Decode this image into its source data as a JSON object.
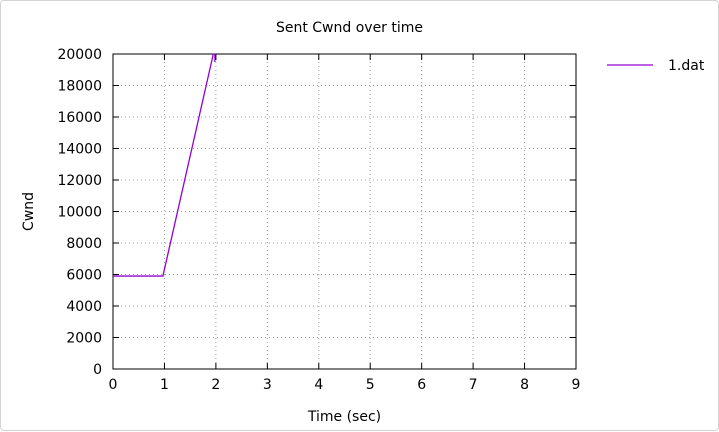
{
  "chart_data": {
    "type": "line",
    "title": "Sent Cwnd over time",
    "xlabel": "Time (sec)",
    "ylabel": "Cwnd",
    "xlim": [
      0,
      9
    ],
    "ylim": [
      0,
      20000
    ],
    "x_ticks": [
      0,
      1,
      2,
      3,
      4,
      5,
      6,
      7,
      8,
      9
    ],
    "y_ticks": [
      0,
      2000,
      4000,
      6000,
      8000,
      10000,
      12000,
      14000,
      16000,
      18000,
      20000
    ],
    "grid": true,
    "legend_position": "top-right-outside",
    "series": [
      {
        "name": "1.dat",
        "color": "#9400d3",
        "x": [
          0,
          0.97,
          1.95,
          2.0
        ],
        "y": [
          5900,
          5900,
          20000,
          20000
        ]
      }
    ]
  }
}
